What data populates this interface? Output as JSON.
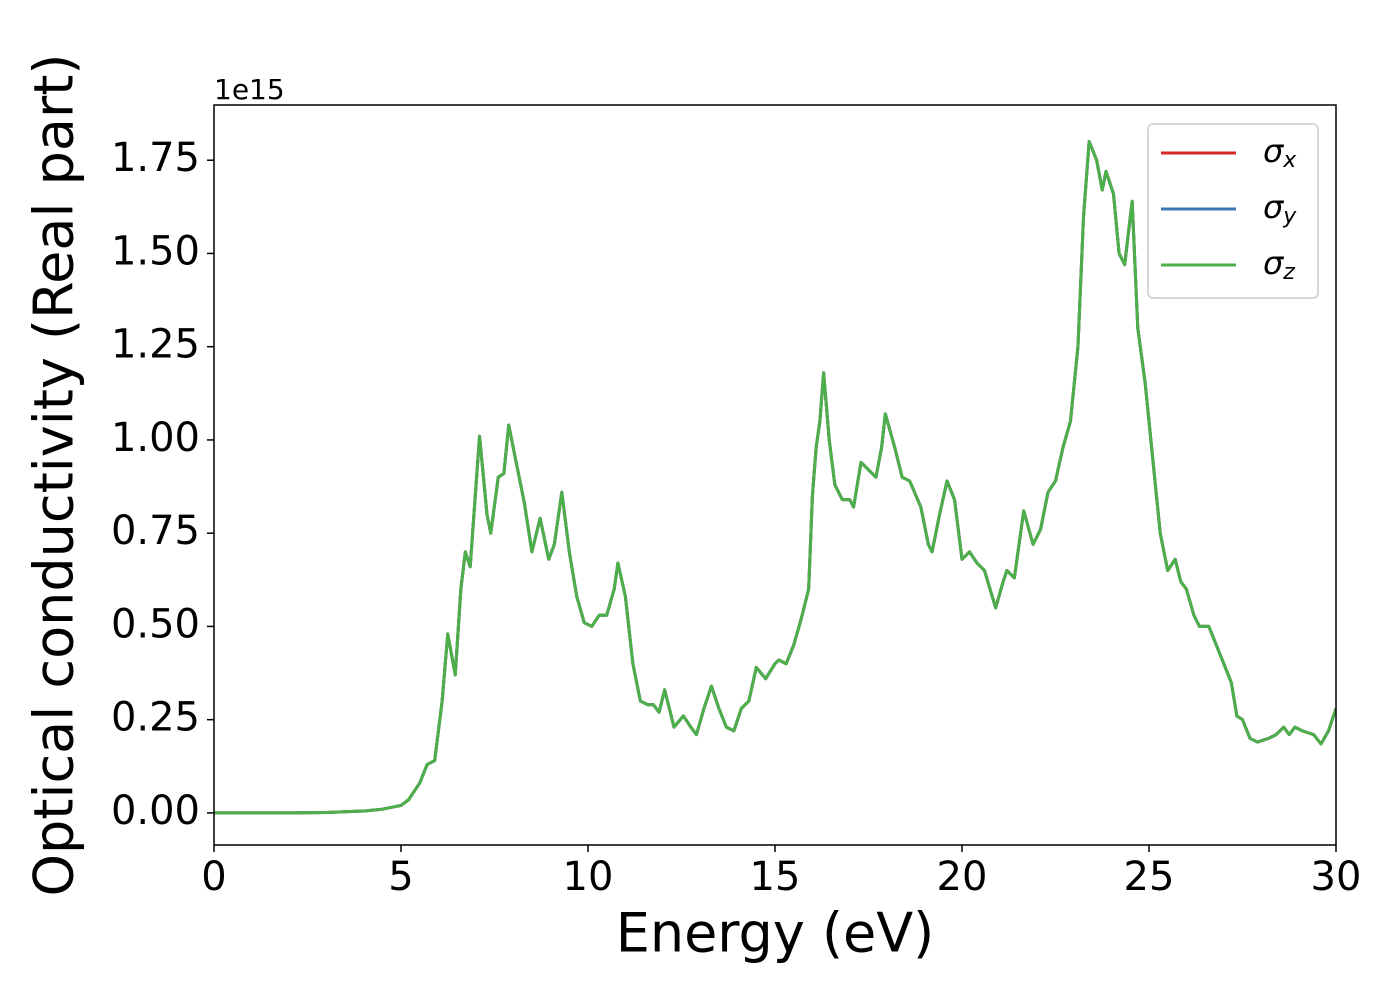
{
  "chart_data": {
    "type": "line",
    "xlabel": "Energy (eV)",
    "ylabel": "Optical conductivity (Real part)",
    "y_offset_label": "1e15",
    "xlim": [
      0,
      30
    ],
    "xticks": [
      0,
      5,
      10,
      15,
      20,
      25,
      30
    ],
    "ylim": [
      -0.086,
      1.898
    ],
    "yticks": [
      {
        "value": 0,
        "label": "0.00"
      },
      0.25,
      {
        "value": 0.5,
        "label": "0.50"
      },
      0.75,
      {
        "value": 1,
        "label": "1.00"
      },
      1.25,
      {
        "value": 1.5,
        "label": "1.50"
      },
      1.75
    ],
    "legend": "upper right",
    "x": [
      0,
      1,
      2,
      3,
      4,
      4.5,
      5.0,
      5.2,
      5.5,
      5.7,
      5.9,
      6.1,
      6.25,
      6.45,
      6.6,
      6.72,
      6.85,
      7.1,
      7.3,
      7.4,
      7.6,
      7.75,
      7.88,
      8.1,
      8.3,
      8.5,
      8.72,
      8.95,
      9.1,
      9.3,
      9.5,
      9.7,
      9.9,
      10.1,
      10.3,
      10.5,
      10.7,
      10.8,
      11.0,
      11.2,
      11.4,
      11.6,
      11.75,
      11.9,
      12.05,
      12.3,
      12.55,
      12.75,
      12.9,
      13.1,
      13.3,
      13.5,
      13.7,
      13.9,
      14.1,
      14.3,
      14.5,
      14.75,
      15.0,
      15.1,
      15.3,
      15.5,
      15.7,
      15.9,
      16.0,
      16.1,
      16.2,
      16.3,
      16.45,
      16.6,
      16.8,
      17.0,
      17.1,
      17.3,
      17.5,
      17.7,
      17.85,
      17.95,
      18.2,
      18.4,
      18.6,
      18.9,
      19.1,
      19.2,
      19.4,
      19.6,
      19.8,
      20.0,
      20.2,
      20.4,
      20.6,
      20.9,
      21.1,
      21.2,
      21.4,
      21.65,
      21.9,
      22.1,
      22.3,
      22.5,
      22.7,
      22.9,
      23.1,
      23.25,
      23.4,
      23.6,
      23.75,
      23.85,
      24.05,
      24.2,
      24.35,
      24.55,
      24.7,
      24.9,
      25.1,
      25.3,
      25.5,
      25.7,
      25.85,
      26.0,
      26.2,
      26.35,
      26.6,
      26.8,
      27.0,
      27.2,
      27.35,
      27.5,
      27.7,
      27.9,
      28.2,
      28.4,
      28.6,
      28.75,
      28.9,
      29.1,
      29.4,
      29.6,
      29.8,
      30.0
    ],
    "series": [
      {
        "name": "σx",
        "color": "#d62728",
        "values": [
          0,
          0,
          0,
          0.001,
          0.005,
          0.01,
          0.02,
          0.035,
          0.08,
          0.13,
          0.14,
          0.3,
          0.48,
          0.37,
          0.6,
          0.7,
          0.66,
          1.01,
          0.8,
          0.75,
          0.9,
          0.91,
          1.04,
          0.93,
          0.83,
          0.7,
          0.79,
          0.68,
          0.72,
          0.86,
          0.7,
          0.58,
          0.51,
          0.5,
          0.53,
          0.53,
          0.6,
          0.67,
          0.58,
          0.4,
          0.3,
          0.29,
          0.29,
          0.27,
          0.33,
          0.23,
          0.26,
          0.23,
          0.21,
          0.28,
          0.34,
          0.28,
          0.23,
          0.22,
          0.28,
          0.3,
          0.39,
          0.36,
          0.4,
          0.41,
          0.4,
          0.45,
          0.52,
          0.6,
          0.85,
          0.98,
          1.05,
          1.18,
          1.0,
          0.88,
          0.84,
          0.84,
          0.82,
          0.94,
          0.92,
          0.9,
          0.98,
          1.07,
          0.98,
          0.9,
          0.89,
          0.82,
          0.72,
          0.7,
          0.8,
          0.89,
          0.84,
          0.68,
          0.7,
          0.67,
          0.65,
          0.55,
          0.62,
          0.65,
          0.63,
          0.81,
          0.72,
          0.76,
          0.86,
          0.89,
          0.98,
          1.05,
          1.25,
          1.6,
          1.8,
          1.75,
          1.67,
          1.72,
          1.66,
          1.5,
          1.47,
          1.64,
          1.3,
          1.15,
          0.95,
          0.75,
          0.65,
          0.68,
          0.62,
          0.6,
          0.53,
          0.5,
          0.5,
          0.45,
          0.4,
          0.35,
          0.26,
          0.25,
          0.2,
          0.19,
          0.2,
          0.21,
          0.23,
          0.21,
          0.23,
          0.22,
          0.21,
          0.185,
          0.22,
          0.28
        ]
      },
      {
        "name": "σy",
        "color": "#3b78b4",
        "values": [
          0,
          0,
          0,
          0.001,
          0.005,
          0.01,
          0.02,
          0.035,
          0.08,
          0.13,
          0.14,
          0.3,
          0.48,
          0.37,
          0.6,
          0.7,
          0.66,
          1.01,
          0.8,
          0.75,
          0.9,
          0.91,
          1.04,
          0.93,
          0.83,
          0.7,
          0.79,
          0.68,
          0.72,
          0.86,
          0.7,
          0.58,
          0.51,
          0.5,
          0.53,
          0.53,
          0.6,
          0.67,
          0.58,
          0.4,
          0.3,
          0.29,
          0.29,
          0.27,
          0.33,
          0.23,
          0.26,
          0.23,
          0.21,
          0.28,
          0.34,
          0.28,
          0.23,
          0.22,
          0.28,
          0.3,
          0.39,
          0.36,
          0.4,
          0.41,
          0.4,
          0.45,
          0.52,
          0.6,
          0.85,
          0.98,
          1.05,
          1.18,
          1.0,
          0.88,
          0.84,
          0.84,
          0.82,
          0.94,
          0.92,
          0.9,
          0.98,
          1.07,
          0.98,
          0.9,
          0.89,
          0.82,
          0.72,
          0.7,
          0.8,
          0.89,
          0.84,
          0.68,
          0.7,
          0.67,
          0.65,
          0.55,
          0.62,
          0.65,
          0.63,
          0.81,
          0.72,
          0.76,
          0.86,
          0.89,
          0.98,
          1.05,
          1.25,
          1.6,
          1.8,
          1.75,
          1.67,
          1.72,
          1.66,
          1.5,
          1.47,
          1.64,
          1.3,
          1.15,
          0.95,
          0.75,
          0.65,
          0.68,
          0.62,
          0.6,
          0.53,
          0.5,
          0.5,
          0.45,
          0.4,
          0.35,
          0.26,
          0.25,
          0.2,
          0.19,
          0.2,
          0.21,
          0.23,
          0.21,
          0.23,
          0.22,
          0.21,
          0.185,
          0.22,
          0.28
        ]
      },
      {
        "name": "σz",
        "color": "#4daf4a",
        "values": [
          0,
          0,
          0,
          0.001,
          0.005,
          0.01,
          0.02,
          0.035,
          0.08,
          0.13,
          0.14,
          0.3,
          0.48,
          0.37,
          0.6,
          0.7,
          0.66,
          1.01,
          0.8,
          0.75,
          0.9,
          0.91,
          1.04,
          0.93,
          0.83,
          0.7,
          0.79,
          0.68,
          0.72,
          0.86,
          0.7,
          0.58,
          0.51,
          0.5,
          0.53,
          0.53,
          0.6,
          0.67,
          0.58,
          0.4,
          0.3,
          0.29,
          0.29,
          0.27,
          0.33,
          0.23,
          0.26,
          0.23,
          0.21,
          0.28,
          0.34,
          0.28,
          0.23,
          0.22,
          0.28,
          0.3,
          0.39,
          0.36,
          0.4,
          0.41,
          0.4,
          0.45,
          0.52,
          0.6,
          0.85,
          0.98,
          1.05,
          1.18,
          1.0,
          0.88,
          0.84,
          0.84,
          0.82,
          0.94,
          0.92,
          0.9,
          0.98,
          1.07,
          0.98,
          0.9,
          0.89,
          0.82,
          0.72,
          0.7,
          0.8,
          0.89,
          0.84,
          0.68,
          0.7,
          0.67,
          0.65,
          0.55,
          0.62,
          0.65,
          0.63,
          0.81,
          0.72,
          0.76,
          0.86,
          0.89,
          0.98,
          1.05,
          1.25,
          1.6,
          1.8,
          1.75,
          1.67,
          1.72,
          1.66,
          1.5,
          1.47,
          1.64,
          1.3,
          1.15,
          0.95,
          0.75,
          0.65,
          0.68,
          0.62,
          0.6,
          0.53,
          0.5,
          0.5,
          0.45,
          0.4,
          0.35,
          0.26,
          0.25,
          0.2,
          0.19,
          0.2,
          0.21,
          0.23,
          0.21,
          0.23,
          0.22,
          0.21,
          0.185,
          0.22,
          0.28
        ]
      }
    ]
  }
}
